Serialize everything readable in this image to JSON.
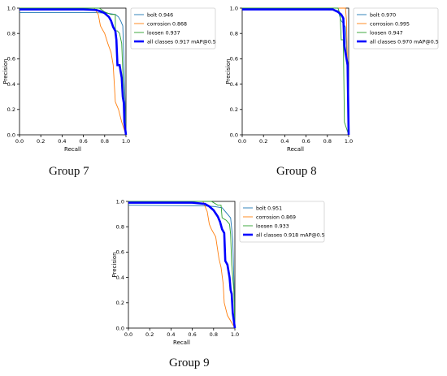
{
  "colors": {
    "bolt": "#1f77b4",
    "corrosion": "#ff7f0e",
    "loosen": "#2ca02c",
    "all": "#0000ff",
    "axis": "#000000"
  },
  "groups": [
    {
      "caption": "Group 7"
    },
    {
      "caption": "Group 8"
    },
    {
      "caption": "Group 9"
    }
  ],
  "chart_data": [
    {
      "type": "line",
      "title": "",
      "xlabel": "Recall",
      "ylabel": "Precision",
      "xlim": [
        0,
        1
      ],
      "ylim": [
        0,
        1
      ],
      "xticks": [
        "0.0",
        "0.2",
        "0.4",
        "0.6",
        "0.8",
        "1.0"
      ],
      "yticks": [
        "0.0",
        "0.2",
        "0.4",
        "0.6",
        "0.8",
        "1.0"
      ],
      "grid": false,
      "legend": "top-right",
      "series": [
        {
          "name": "bolt 0.946",
          "color_key": "bolt",
          "points": [
            [
              0,
              0.965
            ],
            [
              0.05,
              0.965
            ],
            [
              0.7,
              0.965
            ],
            [
              0.82,
              0.96
            ],
            [
              0.9,
              0.95
            ],
            [
              0.93,
              0.93
            ],
            [
              0.95,
              0.9
            ],
            [
              0.97,
              0.86
            ],
            [
              0.98,
              0.6
            ],
            [
              0.99,
              0.3
            ],
            [
              1.0,
              0.0
            ]
          ]
        },
        {
          "name": "corrosion 0.868",
          "color_key": "corrosion",
          "points": [
            [
              0,
              1.0
            ],
            [
              0.7,
              1.0
            ],
            [
              0.74,
              0.95
            ],
            [
              0.76,
              0.86
            ],
            [
              0.8,
              0.8
            ],
            [
              0.83,
              0.72
            ],
            [
              0.86,
              0.65
            ],
            [
              0.88,
              0.55
            ],
            [
              0.9,
              0.26
            ],
            [
              0.93,
              0.2
            ],
            [
              0.96,
              0.1
            ],
            [
              1.0,
              0.0
            ]
          ]
        },
        {
          "name": "loosen 0.937",
          "color_key": "loosen",
          "points": [
            [
              0,
              1.0
            ],
            [
              0.75,
              1.0
            ],
            [
              0.8,
              0.97
            ],
            [
              0.86,
              0.95
            ],
            [
              0.9,
              0.95
            ],
            [
              0.9,
              0.82
            ],
            [
              0.92,
              0.82
            ],
            [
              0.94,
              0.8
            ],
            [
              0.96,
              0.72
            ],
            [
              0.97,
              0.5
            ],
            [
              0.98,
              0.3
            ],
            [
              1.0,
              0.0
            ]
          ]
        },
        {
          "name": "all classes 0.917 mAP@0.5",
          "color_key": "all",
          "bold": true,
          "points": [
            [
              0,
              0.99
            ],
            [
              0.6,
              0.99
            ],
            [
              0.72,
              0.985
            ],
            [
              0.76,
              0.975
            ],
            [
              0.8,
              0.96
            ],
            [
              0.84,
              0.93
            ],
            [
              0.86,
              0.9
            ],
            [
              0.88,
              0.85
            ],
            [
              0.9,
              0.82
            ],
            [
              0.91,
              0.75
            ],
            [
              0.92,
              0.55
            ],
            [
              0.94,
              0.55
            ],
            [
              0.96,
              0.45
            ],
            [
              0.97,
              0.3
            ],
            [
              0.98,
              0.25
            ],
            [
              0.985,
              0.1
            ],
            [
              1.0,
              0.0
            ]
          ]
        }
      ]
    },
    {
      "type": "line",
      "title": "",
      "xlabel": "Recall",
      "ylabel": "Precision",
      "xlim": [
        0,
        1
      ],
      "ylim": [
        0,
        1
      ],
      "xticks": [
        "0.0",
        "0.2",
        "0.4",
        "0.6",
        "0.8",
        "1.0"
      ],
      "yticks": [
        "0.0",
        "0.2",
        "0.4",
        "0.6",
        "0.8",
        "1.0"
      ],
      "grid": false,
      "legend": "top-right",
      "series": [
        {
          "name": "bolt 0.970",
          "color_key": "bolt",
          "points": [
            [
              0,
              0.99
            ],
            [
              0.7,
              0.99
            ],
            [
              0.85,
              0.985
            ],
            [
              0.9,
              0.98
            ],
            [
              0.93,
              0.9
            ],
            [
              0.95,
              0.88
            ],
            [
              0.97,
              0.85
            ],
            [
              0.98,
              0.7
            ],
            [
              0.99,
              0.5
            ],
            [
              1.0,
              0.0
            ]
          ]
        },
        {
          "name": "corrosion 0.995",
          "color_key": "corrosion",
          "points": [
            [
              0,
              1.0
            ],
            [
              0.97,
              1.0
            ],
            [
              0.98,
              0.9
            ],
            [
              0.99,
              0.5
            ],
            [
              1.0,
              0.0
            ]
          ]
        },
        {
          "name": "loosen 0.947",
          "color_key": "loosen",
          "points": [
            [
              0,
              1.0
            ],
            [
              0.9,
              1.0
            ],
            [
              0.92,
              0.95
            ],
            [
              0.93,
              0.75
            ],
            [
              0.95,
              0.75
            ],
            [
              0.96,
              0.1
            ],
            [
              0.98,
              0.05
            ],
            [
              1.0,
              0.0
            ]
          ]
        },
        {
          "name": "all classes 0.970 mAP@0.5",
          "color_key": "all",
          "bold": true,
          "points": [
            [
              0,
              0.99
            ],
            [
              0.85,
              0.99
            ],
            [
              0.9,
              0.97
            ],
            [
              0.93,
              0.95
            ],
            [
              0.95,
              0.92
            ],
            [
              0.96,
              0.7
            ],
            [
              0.97,
              0.65
            ],
            [
              0.98,
              0.6
            ],
            [
              0.99,
              0.55
            ],
            [
              1.0,
              0.0
            ]
          ]
        }
      ]
    },
    {
      "type": "line",
      "title": "",
      "xlabel": "Recall",
      "ylabel": "Precision",
      "xlim": [
        0,
        1
      ],
      "ylim": [
        0,
        1
      ],
      "xticks": [
        "0.0",
        "0.2",
        "0.4",
        "0.6",
        "0.8",
        "1.0"
      ],
      "yticks": [
        "0.0",
        "0.2",
        "0.4",
        "0.6",
        "0.8",
        "1.0"
      ],
      "grid": false,
      "legend": "top-right",
      "series": [
        {
          "name": "bolt 0.951",
          "color_key": "bolt",
          "points": [
            [
              0,
              0.97
            ],
            [
              0.05,
              0.97
            ],
            [
              0.7,
              0.965
            ],
            [
              0.8,
              0.96
            ],
            [
              0.88,
              0.95
            ],
            [
              0.9,
              0.93
            ],
            [
              0.93,
              0.9
            ],
            [
              0.96,
              0.87
            ],
            [
              0.98,
              0.7
            ],
            [
              0.99,
              0.4
            ],
            [
              1.0,
              0.0
            ]
          ]
        },
        {
          "name": "corrosion 0.869",
          "color_key": "corrosion",
          "points": [
            [
              0,
              1.0
            ],
            [
              0.7,
              1.0
            ],
            [
              0.74,
              0.92
            ],
            [
              0.76,
              0.82
            ],
            [
              0.78,
              0.78
            ],
            [
              0.82,
              0.72
            ],
            [
              0.85,
              0.55
            ],
            [
              0.87,
              0.48
            ],
            [
              0.89,
              0.35
            ],
            [
              0.9,
              0.2
            ],
            [
              0.93,
              0.1
            ],
            [
              1.0,
              0.0
            ]
          ]
        },
        {
          "name": "loosen 0.933",
          "color_key": "loosen",
          "points": [
            [
              0,
              1.0
            ],
            [
              0.78,
              1.0
            ],
            [
              0.84,
              0.97
            ],
            [
              0.87,
              0.97
            ],
            [
              0.88,
              0.87
            ],
            [
              0.92,
              0.85
            ],
            [
              0.95,
              0.82
            ],
            [
              0.96,
              0.74
            ],
            [
              0.97,
              0.5
            ],
            [
              0.99,
              0.3
            ],
            [
              1.0,
              0.0
            ]
          ]
        },
        {
          "name": "all classes 0.918 mAP@0.5",
          "color_key": "all",
          "bold": true,
          "points": [
            [
              0,
              0.99
            ],
            [
              0.6,
              0.99
            ],
            [
              0.72,
              0.98
            ],
            [
              0.76,
              0.96
            ],
            [
              0.8,
              0.93
            ],
            [
              0.84,
              0.88
            ],
            [
              0.86,
              0.84
            ],
            [
              0.88,
              0.78
            ],
            [
              0.9,
              0.75
            ],
            [
              0.91,
              0.53
            ],
            [
              0.93,
              0.5
            ],
            [
              0.95,
              0.4
            ],
            [
              0.96,
              0.3
            ],
            [
              0.97,
              0.27
            ],
            [
              0.98,
              0.12
            ],
            [
              1.0,
              0.0
            ]
          ]
        }
      ]
    }
  ]
}
